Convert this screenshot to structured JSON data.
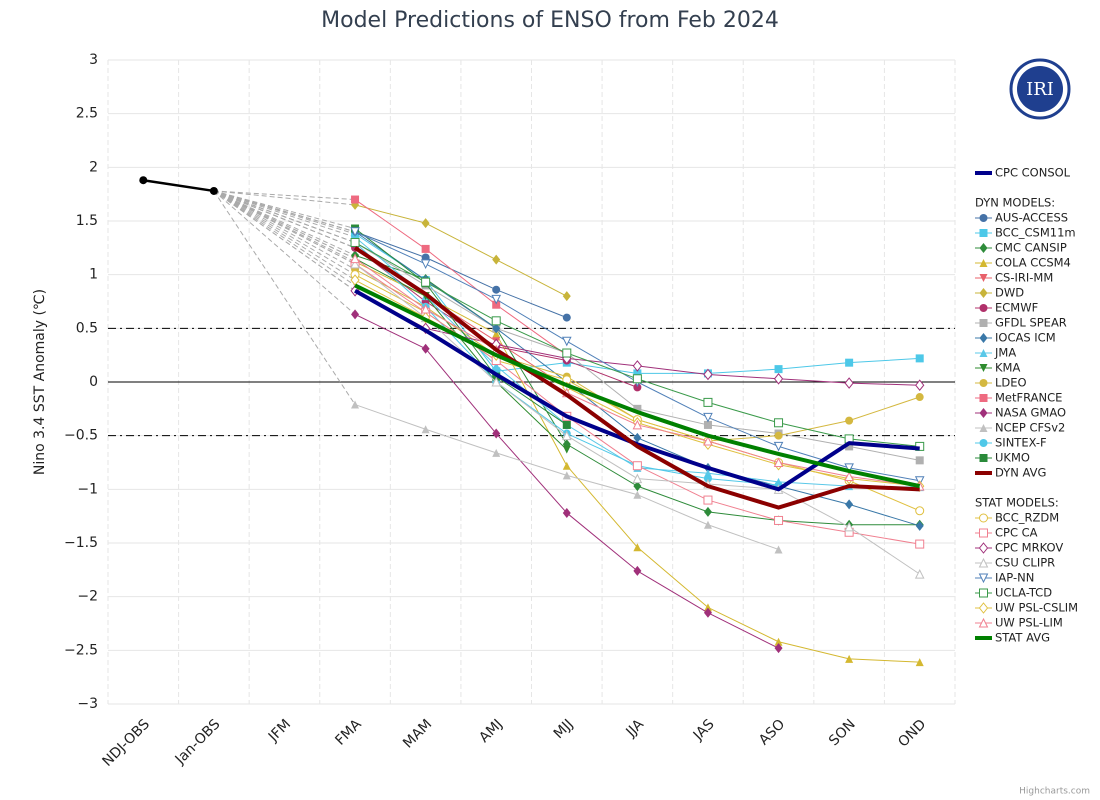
{
  "chart_data": {
    "type": "line",
    "title": "Model Predictions of ENSO from Feb 2024",
    "y_label": "Nino 3.4 SST Anomaly (℃)",
    "credits": "Highcharts.com",
    "logo_text": "IRI",
    "categories": [
      "NDJ-OBS",
      "Jan-OBS",
      "JFM",
      "FMA",
      "MAM",
      "AMJ",
      "MJJ",
      "JJA",
      "JAS",
      "ASO",
      "SON",
      "OND"
    ],
    "ylim": [
      -3,
      3
    ],
    "yticks": [
      3,
      2.5,
      2,
      1.5,
      1,
      0.5,
      0,
      {
        "value": -0.5,
        "label": "−0.5"
      },
      {
        "value": -1,
        "label": "−1"
      },
      {
        "value": -1.5,
        "label": "−1.5"
      },
      {
        "value": -2,
        "label": "−2"
      },
      {
        "value": -2.5,
        "label": "−2.5"
      },
      {
        "value": -3,
        "label": "−3"
      }
    ],
    "grid": true,
    "reference_lines": [
      {
        "value": 0.5,
        "dash": "dashdot"
      },
      {
        "value": -0.5,
        "dash": "dashdot"
      },
      {
        "value": 0,
        "dash": "solid"
      }
    ],
    "connector_color": "#aaaaaa",
    "observed": {
      "color": "#000000",
      "values": [
        1.88,
        1.78,
        null,
        null,
        null,
        null,
        null,
        null,
        null,
        null,
        null,
        null
      ]
    },
    "groups": [
      {
        "series": [
          {
            "name": "CPC CONSOL",
            "color": "#00008b",
            "marker": "none",
            "filled": true,
            "width": 4,
            "values": [
              null,
              null,
              null,
              0.85,
              0.48,
              0.07,
              -0.32,
              -0.58,
              -0.8,
              -1.0,
              -0.57,
              -0.62
            ]
          }
        ]
      },
      {
        "title": "DYN MODELS:",
        "series": [
          {
            "name": "AUS-ACCESS",
            "color": "#4572a7",
            "marker": "circle",
            "filled": true,
            "width": 1,
            "values": [
              null,
              null,
              null,
              1.4,
              1.16,
              0.86,
              0.6,
              null,
              null,
              null,
              null,
              null
            ]
          },
          {
            "name": "BCC_CSM11m",
            "color": "#4dc8e8",
            "marker": "square",
            "filled": true,
            "width": 1,
            "values": [
              null,
              null,
              null,
              1.38,
              0.95,
              0.1,
              0.18,
              0.08,
              0.08,
              0.12,
              0.18,
              0.22
            ]
          },
          {
            "name": "CMC CANSIP",
            "color": "#2e8b3a",
            "marker": "diamond",
            "filled": true,
            "width": 1,
            "values": [
              null,
              null,
              null,
              1.18,
              0.96,
              0.5,
              -0.58,
              -0.97,
              -1.21,
              -1.29,
              -1.33,
              -1.33
            ]
          },
          {
            "name": "COLA CCSM4",
            "color": "#d4b830",
            "marker": "triangle",
            "filled": true,
            "width": 1,
            "values": [
              null,
              null,
              null,
              1.12,
              0.8,
              0.45,
              -0.78,
              -1.54,
              -2.1,
              -2.42,
              -2.58,
              -2.61
            ]
          },
          {
            "name": "CS-IRI-MM",
            "color": "#e8606a",
            "marker": "triangle-down",
            "filled": true,
            "width": 1,
            "values": [
              null,
              null,
              null,
              1.25,
              0.8,
              0.38,
              -0.05,
              null,
              null,
              null,
              null,
              null
            ]
          },
          {
            "name": "DWD",
            "color": "#c8b43a",
            "marker": "diamond",
            "filled": true,
            "width": 1,
            "values": [
              null,
              null,
              null,
              1.65,
              1.48,
              1.14,
              0.8,
              null,
              null,
              null,
              null,
              null
            ]
          },
          {
            "name": "ECMWF",
            "color": "#b0306a",
            "marker": "circle",
            "filled": true,
            "width": 1,
            "values": [
              null,
              null,
              null,
              1.25,
              0.75,
              0.33,
              0.2,
              -0.05,
              null,
              null,
              null,
              null
            ]
          },
          {
            "name": "GFDL SPEAR",
            "color": "#b0b0b0",
            "marker": "square",
            "filled": true,
            "width": 1,
            "values": [
              null,
              null,
              null,
              1.3,
              0.9,
              0.5,
              0.27,
              -0.25,
              -0.4,
              -0.48,
              -0.6,
              -0.73
            ]
          },
          {
            "name": "IOCAS ICM",
            "color": "#3a78a8",
            "marker": "diamond",
            "filled": true,
            "width": 1,
            "values": [
              null,
              null,
              null,
              1.4,
              0.95,
              0.5,
              0.0,
              -0.52,
              -0.8,
              -0.97,
              -1.14,
              -1.34
            ]
          },
          {
            "name": "JMA",
            "color": "#5ac8e8",
            "marker": "triangle",
            "filled": true,
            "width": 1,
            "values": [
              null,
              null,
              null,
              1.35,
              0.8,
              0.15,
              -0.4,
              -0.8,
              -0.85,
              -0.93,
              -0.97,
              -0.98
            ]
          },
          {
            "name": "KMA",
            "color": "#2e8b2e",
            "marker": "triangle-down",
            "filled": true,
            "width": 1,
            "values": [
              null,
              null,
              null,
              1.15,
              0.8,
              0.0,
              -0.63,
              null,
              null,
              null,
              null,
              null
            ]
          },
          {
            "name": "LDEO",
            "color": "#d4b840",
            "marker": "circle",
            "filled": true,
            "width": 1,
            "values": [
              null,
              null,
              null,
              1.05,
              0.7,
              0.25,
              0.05,
              -0.35,
              -0.55,
              -0.5,
              -0.36,
              -0.14
            ]
          },
          {
            "name": "MetFRANCE",
            "color": "#ee6a80",
            "marker": "square",
            "filled": true,
            "width": 1,
            "values": [
              null,
              null,
              null,
              1.7,
              1.24,
              0.72,
              0.25,
              null,
              null,
              null,
              null,
              null
            ]
          },
          {
            "name": "NASA GMAO",
            "color": "#a0307a",
            "marker": "diamond",
            "filled": true,
            "width": 1,
            "values": [
              null,
              null,
              null,
              0.63,
              0.31,
              -0.48,
              -1.22,
              -1.76,
              -2.15,
              -2.48,
              null,
              null
            ]
          },
          {
            "name": "NCEP CFSv2",
            "color": "#c0c0c0",
            "marker": "triangle",
            "filled": true,
            "width": 1,
            "values": [
              null,
              null,
              null,
              -0.21,
              -0.44,
              -0.66,
              -0.87,
              -1.05,
              -1.33,
              -1.56,
              null,
              null
            ]
          },
          {
            "name": "SINTEX-F",
            "color": "#50c8e8",
            "marker": "circle",
            "filled": true,
            "width": 1,
            "values": [
              null,
              null,
              null,
              1.3,
              0.7,
              0.0,
              -0.48,
              -0.78,
              -0.9,
              -0.96,
              null,
              null
            ]
          },
          {
            "name": "UKMO",
            "color": "#2a8a3a",
            "marker": "square",
            "filled": true,
            "width": 1,
            "values": [
              null,
              null,
              null,
              1.43,
              0.92,
              0.05,
              -0.4,
              null,
              null,
              null,
              null,
              null
            ]
          },
          {
            "name": "DYN AVG",
            "color": "#8b0000",
            "marker": "none",
            "filled": true,
            "width": 4,
            "values": [
              null,
              null,
              null,
              1.25,
              0.82,
              0.3,
              -0.12,
              -0.6,
              -0.97,
              -1.17,
              -0.97,
              -1.0
            ]
          }
        ]
      },
      {
        "title": "STAT MODELS:",
        "series": [
          {
            "name": "BCC_RZDM",
            "color": "#e0c040",
            "marker": "circle",
            "filled": false,
            "width": 1,
            "values": [
              null,
              null,
              null,
              1.0,
              0.65,
              0.2,
              0.02,
              -0.35,
              -0.55,
              -0.75,
              -0.92,
              -1.2
            ]
          },
          {
            "name": "CPC CA",
            "color": "#f08090",
            "marker": "square",
            "filled": false,
            "width": 1,
            "values": [
              null,
              null,
              null,
              1.1,
              0.65,
              0.2,
              -0.32,
              -0.78,
              -1.1,
              -1.29,
              -1.4,
              -1.51
            ]
          },
          {
            "name": "CPC MRKOV",
            "color": "#a0307a",
            "marker": "diamond",
            "filled": false,
            "width": 1,
            "values": [
              null,
              null,
              null,
              0.85,
              0.5,
              0.35,
              0.22,
              0.15,
              0.07,
              0.03,
              -0.01,
              -0.03
            ]
          },
          {
            "name": "CSU CLIPR",
            "color": "#c0c0c0",
            "marker": "triangle",
            "filled": false,
            "width": 1,
            "values": [
              null,
              null,
              null,
              1.1,
              0.6,
              0.0,
              -0.5,
              -0.9,
              -0.95,
              -1.0,
              -1.35,
              -1.79
            ]
          },
          {
            "name": "IAP-NN",
            "color": "#5080b8",
            "marker": "triangle-down",
            "filled": false,
            "width": 1,
            "values": [
              null,
              null,
              null,
              1.4,
              1.1,
              0.77,
              0.38,
              0.0,
              -0.33,
              -0.6,
              -0.8,
              -0.92
            ]
          },
          {
            "name": "UCLA-TCD",
            "color": "#3a9a4a",
            "marker": "square",
            "filled": false,
            "width": 1,
            "values": [
              null,
              null,
              null,
              1.3,
              0.93,
              0.57,
              0.27,
              0.03,
              -0.19,
              -0.38,
              -0.53,
              -0.6
            ]
          },
          {
            "name": "UW PSL-CSLIM",
            "color": "#e0c040",
            "marker": "diamond",
            "filled": false,
            "width": 1,
            "values": [
              null,
              null,
              null,
              0.95,
              0.6,
              0.25,
              -0.05,
              -0.38,
              -0.58,
              -0.77,
              -0.9,
              -0.97
            ]
          },
          {
            "name": "UW PSL-LIM",
            "color": "#f08090",
            "marker": "triangle",
            "filled": false,
            "width": 1,
            "values": [
              null,
              null,
              null,
              1.15,
              0.68,
              0.3,
              -0.1,
              -0.4,
              -0.55,
              -0.75,
              -0.88,
              -0.97
            ]
          },
          {
            "name": "STAT AVG",
            "color": "#008000",
            "marker": "none",
            "filled": true,
            "width": 4,
            "values": [
              null,
              null,
              null,
              0.9,
              0.58,
              0.25,
              -0.03,
              -0.28,
              -0.5,
              -0.67,
              -0.83,
              -0.97
            ]
          }
        ]
      }
    ]
  }
}
